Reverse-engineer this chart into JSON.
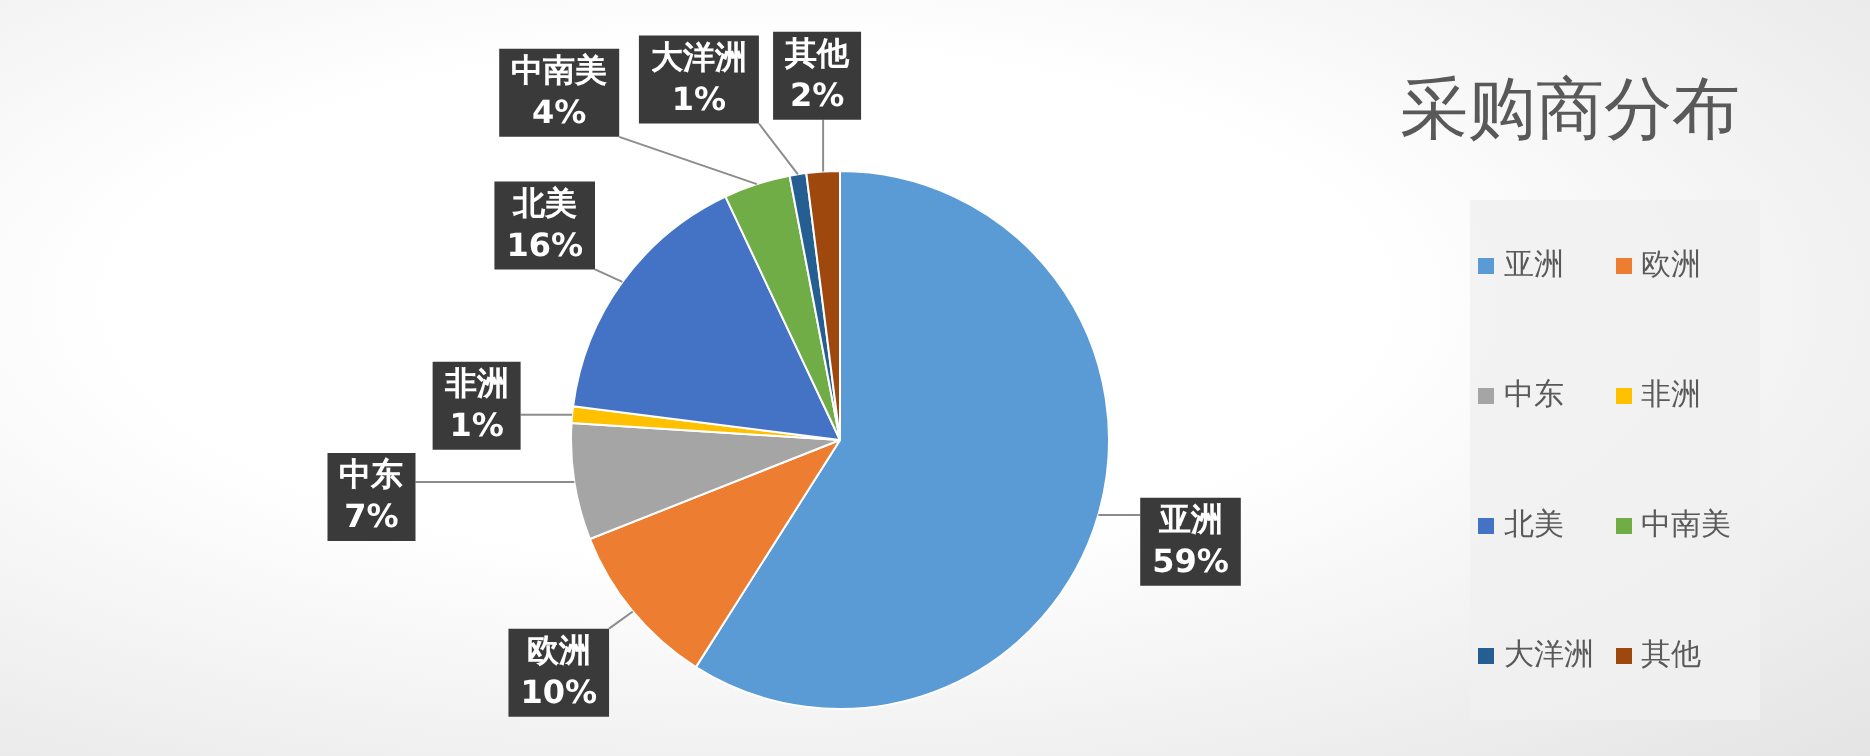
{
  "chart_data": {
    "type": "pie",
    "title": "采购商分布",
    "categories": [
      "亚洲",
      "欧洲",
      "中东",
      "非洲",
      "北美",
      "中南美",
      "大洋洲",
      "其他"
    ],
    "values": [
      59,
      10,
      7,
      1,
      16,
      4,
      1,
      2
    ],
    "value_labels": [
      "59%",
      "10%",
      "7%",
      "1%",
      "16%",
      "4%",
      "1%",
      "2%"
    ],
    "colors": [
      "#5b9bd5",
      "#ed7d31",
      "#a5a5a5",
      "#ffc000",
      "#4472c4",
      "#70ad47",
      "#255e91",
      "#9e480e"
    ],
    "legend": "right"
  }
}
